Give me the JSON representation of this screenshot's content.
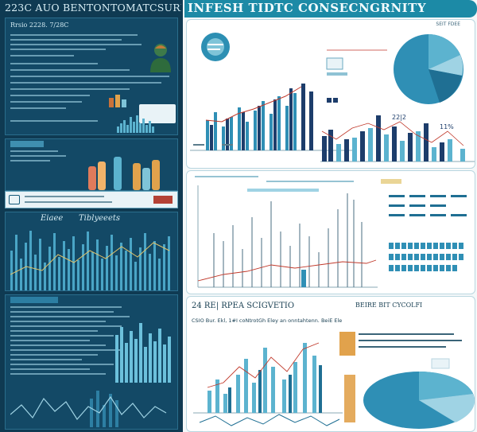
{
  "left": {
    "title": "223C AUO BENTONTOMATCSURLY",
    "subtitle": "Rrsio 2228.  7/28C",
    "panel3_labels": [
      "Eiaee",
      "Tiblyeeets"
    ]
  },
  "header": {
    "title": "INFESH TIDTC CONSECNGRNITY"
  },
  "card1": {
    "corner_text": "SEIT FDEE",
    "label_22": "22|2",
    "label_11": "11%"
  },
  "card3": {
    "title": "24 RE|  RPEA  SCIGVETIO",
    "subtitle": "CSIO   Bur. Ekl, 1#I  coNtrotGh Eley  an  onntahtenn.  BeiE Ele",
    "right_title": "BEIRE BIT CYCOLFI"
  },
  "colors": {
    "navy": "#0f3a52",
    "teal": "#1c8aa6",
    "accent": "#3b9bbf",
    "dark_bar": "#1d3d6b",
    "light_teal": "#7fc4d8",
    "red": "#c0392b"
  },
  "icons": [
    "person-avatar-icon",
    "document-icon",
    "info-icon",
    "pie-chart-icon"
  ]
}
